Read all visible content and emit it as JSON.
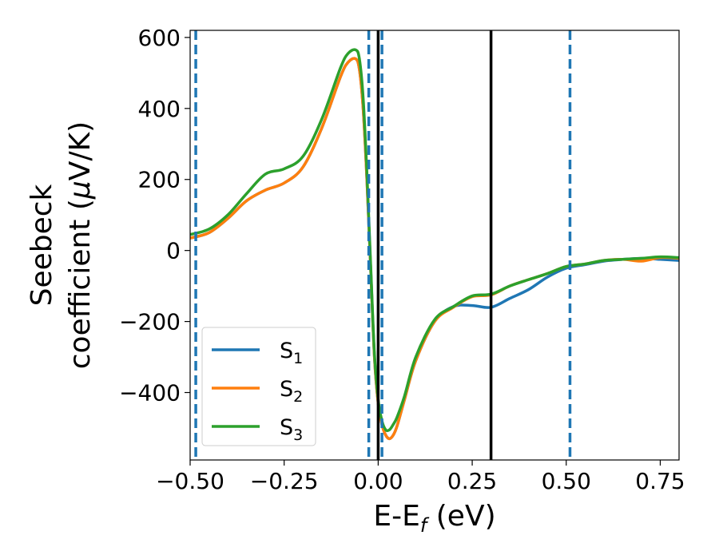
{
  "chart_data": {
    "type": "line",
    "xlabel": "E-E",
    "xlabel_sub": "f",
    "xlabel_unit": " (eV)",
    "ylabel_line1": "Seebeck",
    "ylabel_line2_a": "coefficient  (",
    "ylabel_line2_mu": "μ",
    "ylabel_line2_b": "V/K)",
    "xlim": [
      -0.5,
      0.8
    ],
    "ylim": [
      -590,
      620
    ],
    "xticks": [
      -0.5,
      -0.25,
      0.0,
      0.25,
      0.5,
      0.75
    ],
    "xtick_labels": [
      "−0.50",
      "−0.25",
      "0.00",
      "0.25",
      "0.50",
      "0.75"
    ],
    "yticks": [
      -400,
      -200,
      0,
      200,
      400,
      600
    ],
    "ytick_labels": [
      "−400",
      "−200",
      "0",
      "200",
      "400",
      "600"
    ],
    "vlines_dashed": [
      -0.485,
      -0.025,
      0.01,
      0.51
    ],
    "vlines_solid": [
      0.0,
      0.3
    ],
    "dashed_color": "#1f77b4",
    "solid_color": "#000000",
    "legend_position": "lower-left",
    "series": [
      {
        "name": "S",
        "sub": "1",
        "color": "#1f77b4",
        "x": [
          -0.5,
          -0.45,
          -0.4,
          -0.35,
          -0.3,
          -0.25,
          -0.2,
          -0.15,
          -0.1,
          -0.08,
          -0.06,
          -0.05,
          -0.04,
          -0.03,
          -0.02,
          -0.01,
          0.0,
          0.01,
          0.02,
          0.03,
          0.04,
          0.05,
          0.07,
          0.1,
          0.15,
          0.2,
          0.25,
          0.3,
          0.35,
          0.4,
          0.45,
          0.5,
          0.55,
          0.6,
          0.65,
          0.7,
          0.75,
          0.8
        ],
        "y": [
          35,
          50,
          90,
          140,
          170,
          190,
          235,
          345,
          490,
          530,
          540,
          510,
          400,
          200,
          -50,
          -300,
          -430,
          -490,
          -520,
          -530,
          -520,
          -495,
          -420,
          -310,
          -200,
          -158,
          -155,
          -160,
          -135,
          -110,
          -75,
          -50,
          -40,
          -30,
          -25,
          -22,
          -25,
          -28
        ]
      },
      {
        "name": "S",
        "sub": "2",
        "color": "#ff7f0e",
        "x": [
          -0.5,
          -0.45,
          -0.4,
          -0.35,
          -0.3,
          -0.25,
          -0.2,
          -0.15,
          -0.1,
          -0.08,
          -0.06,
          -0.05,
          -0.04,
          -0.03,
          -0.02,
          -0.01,
          0.0,
          0.01,
          0.02,
          0.03,
          0.04,
          0.05,
          0.07,
          0.1,
          0.15,
          0.2,
          0.25,
          0.3,
          0.35,
          0.4,
          0.45,
          0.5,
          0.55,
          0.6,
          0.65,
          0.7,
          0.75,
          0.8
        ],
        "y": [
          35,
          50,
          90,
          140,
          170,
          190,
          235,
          345,
          490,
          530,
          540,
          510,
          400,
          200,
          -50,
          -300,
          -430,
          -490,
          -520,
          -530,
          -520,
          -495,
          -420,
          -310,
          -200,
          -160,
          -130,
          -125,
          -100,
          -82,
          -65,
          -45,
          -38,
          -28,
          -25,
          -30,
          -20,
          -22
        ]
      },
      {
        "name": "S",
        "sub": "3",
        "color": "#2ca02c",
        "x": [
          -0.5,
          -0.45,
          -0.4,
          -0.35,
          -0.3,
          -0.25,
          -0.2,
          -0.15,
          -0.1,
          -0.08,
          -0.06,
          -0.05,
          -0.04,
          -0.03,
          -0.02,
          -0.01,
          0.0,
          0.01,
          0.02,
          0.03,
          0.04,
          0.05,
          0.07,
          0.1,
          0.15,
          0.2,
          0.25,
          0.3,
          0.35,
          0.4,
          0.45,
          0.5,
          0.55,
          0.6,
          0.65,
          0.7,
          0.75,
          0.8
        ],
        "y": [
          45,
          60,
          100,
          160,
          215,
          230,
          265,
          370,
          515,
          555,
          565,
          540,
          430,
          220,
          -40,
          -290,
          -420,
          -480,
          -505,
          -505,
          -490,
          -470,
          -410,
          -300,
          -195,
          -158,
          -128,
          -123,
          -100,
          -82,
          -65,
          -45,
          -38,
          -28,
          -25,
          -22,
          -18,
          -20
        ]
      }
    ]
  }
}
